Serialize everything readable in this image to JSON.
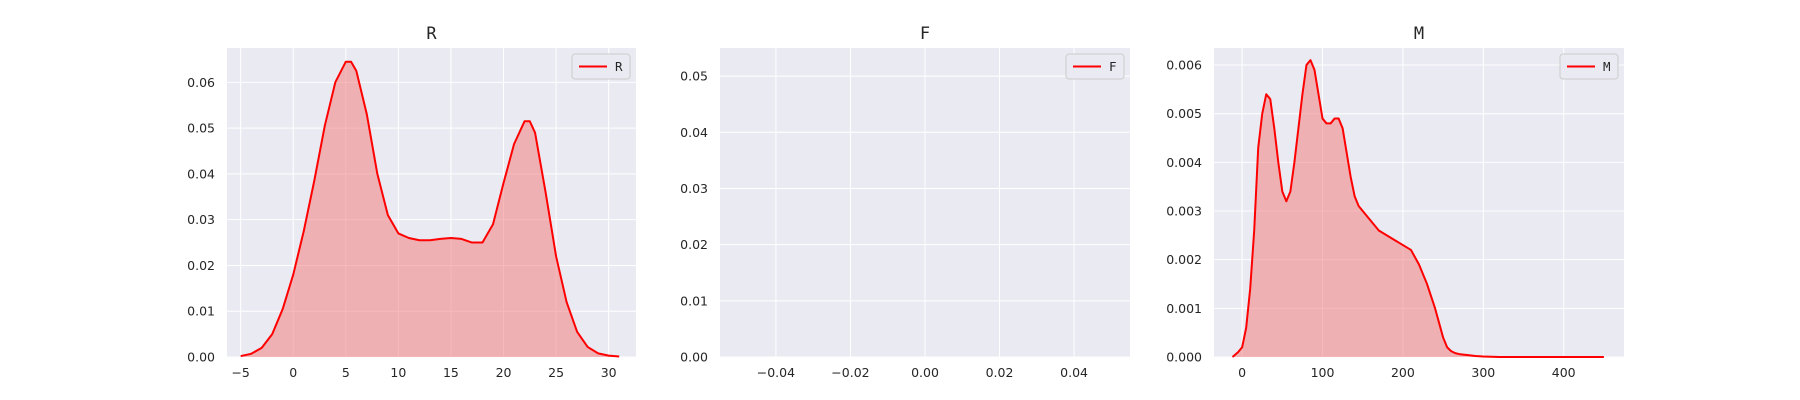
{
  "figure": {
    "background": "#ffffff",
    "plot_background": "#eaeaf2",
    "grid_color": "#ffffff",
    "line_color": "#ff0000",
    "fill_color": "#f08080"
  },
  "chart_data": [
    {
      "type": "area",
      "title": "R",
      "legend": {
        "label": "R",
        "position": "upper-right"
      },
      "xlim": [
        -6.3,
        32.6
      ],
      "ylim": [
        0,
        0.0675
      ],
      "x_ticks": [
        -5,
        0,
        5,
        10,
        15,
        20,
        25,
        30
      ],
      "x_tick_labels": [
        "−5",
        "0",
        "5",
        "10",
        "15",
        "20",
        "25",
        "30"
      ],
      "y_ticks": [
        0,
        0.01,
        0.02,
        0.03,
        0.04,
        0.05,
        0.06
      ],
      "y_tick_labels": [
        "0.00",
        "0.01",
        "0.02",
        "0.03",
        "0.04",
        "0.05",
        "0.06"
      ],
      "grid": true,
      "series": [
        {
          "name": "R",
          "x": [
            -5,
            -4,
            -3,
            -2,
            -1,
            0,
            1,
            2,
            3,
            4,
            5,
            5.5,
            6,
            7,
            8,
            9,
            10,
            11,
            12,
            13,
            14,
            15,
            16,
            17,
            18,
            19,
            20,
            21,
            22,
            22.5,
            23,
            24,
            25,
            26,
            27,
            28,
            29,
            30,
            31
          ],
          "y": [
            0.0002,
            0.0007,
            0.002,
            0.005,
            0.0105,
            0.018,
            0.0275,
            0.0385,
            0.0505,
            0.06,
            0.0645,
            0.0645,
            0.0625,
            0.053,
            0.04,
            0.031,
            0.027,
            0.026,
            0.0255,
            0.0255,
            0.0258,
            0.026,
            0.0258,
            0.025,
            0.025,
            0.029,
            0.038,
            0.0465,
            0.0515,
            0.0515,
            0.049,
            0.036,
            0.022,
            0.012,
            0.0055,
            0.0022,
            0.0008,
            0.0003,
            0.0001
          ]
        }
      ]
    },
    {
      "type": "line",
      "title": "F",
      "legend": {
        "label": "F",
        "position": "upper-right"
      },
      "xlim": [
        -0.055,
        0.055
      ],
      "ylim": [
        0,
        0.055
      ],
      "x_ticks": [
        -0.04,
        -0.02,
        0,
        0.02,
        0.04
      ],
      "x_tick_labels": [
        "−0.04",
        "−0.02",
        "0.00",
        "0.02",
        "0.04"
      ],
      "y_ticks": [
        0,
        0.01,
        0.02,
        0.03,
        0.04,
        0.05
      ],
      "y_tick_labels": [
        "0.00",
        "0.01",
        "0.02",
        "0.03",
        "0.04",
        "0.05"
      ],
      "grid": true,
      "series": [
        {
          "name": "F",
          "x": [],
          "y": []
        }
      ]
    },
    {
      "type": "area",
      "title": "M",
      "legend": {
        "label": "M",
        "position": "upper-right"
      },
      "xlim": [
        -35,
        475
      ],
      "ylim": [
        0,
        0.00635
      ],
      "x_ticks": [
        0,
        100,
        200,
        300,
        400
      ],
      "x_tick_labels": [
        "0",
        "100",
        "200",
        "300",
        "400"
      ],
      "y_ticks": [
        0,
        0.001,
        0.002,
        0.003,
        0.004,
        0.005,
        0.006
      ],
      "y_tick_labels": [
        "0.000",
        "0.001",
        "0.002",
        "0.003",
        "0.004",
        "0.005",
        "0.006"
      ],
      "grid": true,
      "series": [
        {
          "name": "M",
          "x": [
            -12,
            -5,
            0,
            5,
            10,
            15,
            20,
            25,
            30,
            35,
            40,
            45,
            50,
            55,
            60,
            65,
            70,
            75,
            80,
            85,
            90,
            95,
            100,
            105,
            110,
            115,
            120,
            125,
            130,
            135,
            140,
            145,
            150,
            160,
            170,
            180,
            190,
            200,
            210,
            220,
            230,
            240,
            245,
            250,
            255,
            260,
            265,
            270,
            275,
            280,
            285,
            290,
            300,
            320,
            350,
            380,
            420,
            450
          ],
          "y": [
            0,
            0.0001,
            0.0002,
            0.0006,
            0.0014,
            0.0026,
            0.0043,
            0.005,
            0.0054,
            0.0053,
            0.0047,
            0.004,
            0.0034,
            0.0032,
            0.0034,
            0.004,
            0.0047,
            0.0054,
            0.006,
            0.0061,
            0.0059,
            0.0054,
            0.0049,
            0.0048,
            0.0048,
            0.0049,
            0.0049,
            0.0047,
            0.0042,
            0.0037,
            0.0033,
            0.0031,
            0.003,
            0.0028,
            0.0026,
            0.0025,
            0.0024,
            0.0023,
            0.0022,
            0.0019,
            0.0015,
            0.001,
            0.0007,
            0.0004,
            0.0002,
            0.00012,
            8e-05,
            6e-05,
            5e-05,
            4e-05,
            3e-05,
            2e-05,
            1e-05,
            0,
            0,
            0,
            0,
            0
          ]
        }
      ]
    }
  ]
}
